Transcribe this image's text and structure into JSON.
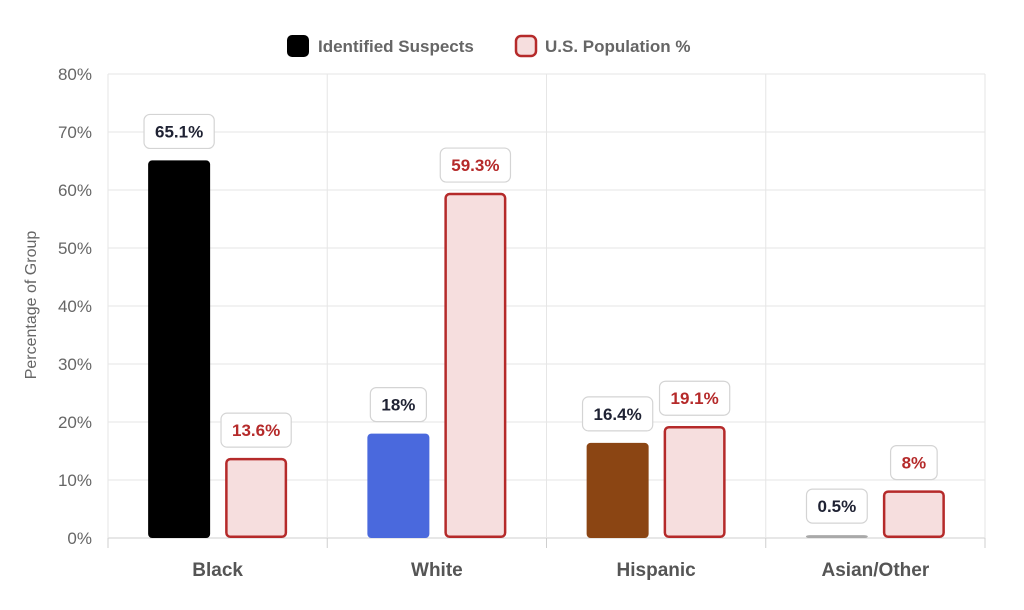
{
  "chart_data": {
    "type": "bar",
    "categories": [
      "Black",
      "White",
      "Hispanic",
      "Asian/Other"
    ],
    "series": [
      {
        "name": "Identified Suspects",
        "values": [
          65.1,
          18,
          16.4,
          0.5
        ],
        "labels": [
          "65.1%",
          "18%",
          "16.4%",
          "0.5%"
        ],
        "colors": [
          "#000000",
          "#4a69dd",
          "#8b4513",
          "#a9a9a9"
        ],
        "label_color": "#1f2233"
      },
      {
        "name": "U.S. Population %",
        "values": [
          13.6,
          59.3,
          19.1,
          8
        ],
        "labels": [
          "13.6%",
          "59.3%",
          "19.1%",
          "8%"
        ],
        "fill_color": "#f6dede",
        "stroke_color": "#b52a2a",
        "label_color": "#b52a2a"
      }
    ],
    "ylabel": "Percentage of Group",
    "ylim": [
      0,
      80
    ],
    "yticks": [
      "0%",
      "10%",
      "20%",
      "30%",
      "40%",
      "50%",
      "60%",
      "70%",
      "80%"
    ],
    "grid": true,
    "legend_position": "top-center"
  }
}
